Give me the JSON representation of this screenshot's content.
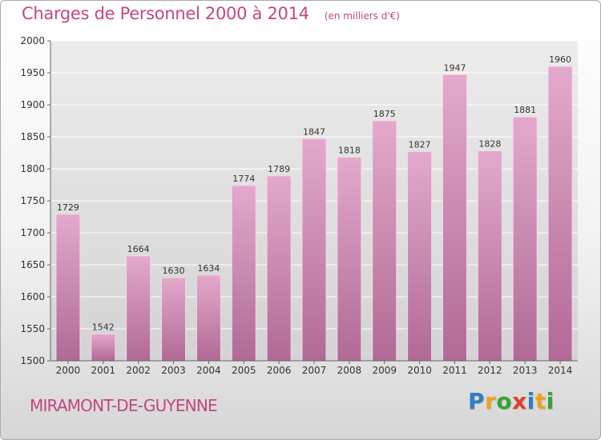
{
  "header": {
    "title": "Charges de Personnel 2000 à 2014",
    "subtitle": "(en milliers d'€)"
  },
  "footer": {
    "town": "MIRAMONT-DE-GUYENNE",
    "logo": [
      {
        "ch": "P",
        "color": "#2f7fc1"
      },
      {
        "ch": "r",
        "color": "#f0a020"
      },
      {
        "ch": "o",
        "color": "#3aa03a"
      },
      {
        "ch": "x",
        "color": "#e0402a"
      },
      {
        "ch": "i",
        "color": "#2f7fc1"
      },
      {
        "ch": "t",
        "color": "#f0a020"
      },
      {
        "ch": "i",
        "color": "#3aa03a"
      }
    ]
  },
  "chart_data": {
    "type": "bar",
    "categories": [
      "2000",
      "2001",
      "2002",
      "2003",
      "2004",
      "2005",
      "2006",
      "2007",
      "2008",
      "2009",
      "2010",
      "2011",
      "2012",
      "2013",
      "2014"
    ],
    "values": [
      1729,
      1542,
      1664,
      1630,
      1634,
      1774,
      1789,
      1847,
      1818,
      1875,
      1827,
      1947,
      1828,
      1881,
      1960
    ],
    "yticks": [
      1500,
      1550,
      1600,
      1650,
      1700,
      1750,
      1800,
      1850,
      1900,
      1950,
      2000
    ],
    "ylim": [
      1500,
      2000
    ],
    "grid": true,
    "bar_color": "#c77aa6"
  }
}
